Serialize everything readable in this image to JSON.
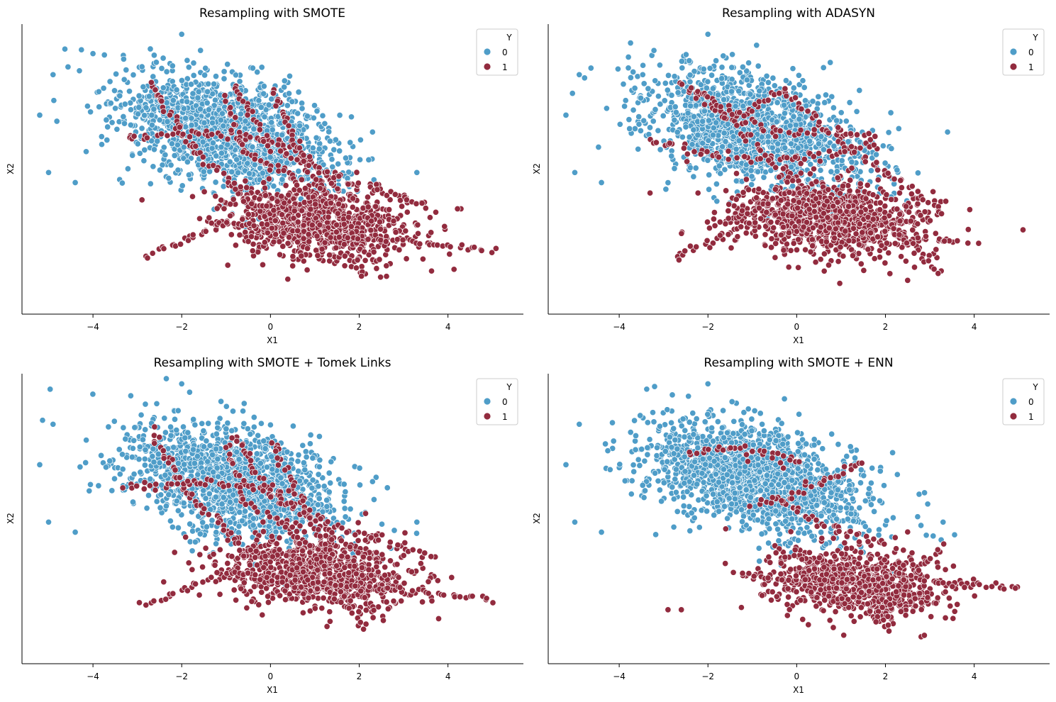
{
  "colors": {
    "class0": "#4f9dc8",
    "class1": "#922b3e",
    "edge": "#ffffff",
    "axis": "#000000"
  },
  "chart_data": [
    {
      "type": "scatter",
      "title": "Resampling with SMOTE",
      "xlabel": "X1",
      "ylabel": "X2",
      "xlim": [
        -5.6,
        5.7
      ],
      "ylim": [
        -4.4,
        4.2
      ],
      "xticks": [
        -4,
        -2,
        0,
        2,
        4
      ],
      "xtick_labels": [
        "−4",
        "−2",
        "0",
        "2",
        "4"
      ],
      "yticks_shown": false,
      "grid": false,
      "legend": {
        "title": "Y",
        "placement": "top-right",
        "entries": [
          "0",
          "1"
        ]
      },
      "series": [
        {
          "name": "0",
          "cluster": {
            "center": [
              -0.9,
              1.0
            ],
            "spread": [
              1.25,
              0.9
            ],
            "corr": -0.45,
            "n": 1500
          },
          "outliers": [
            [
              -5.2,
              1.5
            ],
            [
              -4.9,
              2.7
            ],
            [
              -5.0,
              -0.2
            ],
            [
              -4.4,
              -0.5
            ],
            [
              -2.0,
              3.9
            ],
            [
              1.1,
              0.5
            ],
            [
              3.3,
              -0.2
            ],
            [
              2.3,
              1.0
            ]
          ]
        },
        {
          "name": "1",
          "cluster": {
            "center": [
              1.0,
              -1.7
            ],
            "spread": [
              1.05,
              0.55
            ],
            "corr": -0.2,
            "n": 800
          },
          "paths": [
            [
              [
                -2.7,
                2.5
              ],
              [
                -1.8,
                0.5
              ],
              [
                -0.5,
                -1.0
              ],
              [
                0.9,
                -1.8
              ]
            ],
            [
              [
                -3.3,
                0.8
              ],
              [
                -1.5,
                1.0
              ],
              [
                0.0,
                0.8
              ],
              [
                2.2,
                -1.3
              ]
            ],
            [
              [
                -1.0,
                2.0
              ],
              [
                -0.6,
                0.4
              ],
              [
                0.5,
                -0.3
              ],
              [
                2.1,
                -3.3
              ]
            ],
            [
              [
                -2.8,
                -2.7
              ],
              [
                -1.0,
                -1.7
              ],
              [
                1.0,
                -2.0
              ],
              [
                5.0,
                -2.5
              ]
            ],
            [
              [
                -0.8,
                2.4
              ],
              [
                0.0,
                0.6
              ],
              [
                1.8,
                -0.5
              ],
              [
                3.6,
                -1.2
              ]
            ],
            [
              [
                0.1,
                2.2
              ],
              [
                0.5,
                0.8
              ],
              [
                1.3,
                -1.0
              ],
              [
                2.5,
                -3.1
              ]
            ]
          ]
        }
      ]
    },
    {
      "type": "scatter",
      "title": "Resampling with ADASYN",
      "xlabel": "X1",
      "ylabel": "X2",
      "xlim": [
        -5.6,
        5.7
      ],
      "ylim": [
        -4.4,
        4.2
      ],
      "xticks": [
        -4,
        -2,
        0,
        2,
        4
      ],
      "xtick_labels": [
        "−4",
        "−2",
        "0",
        "2",
        "4"
      ],
      "yticks_shown": false,
      "grid": false,
      "legend": {
        "title": "Y",
        "placement": "top-right",
        "entries": [
          "0",
          "1"
        ]
      },
      "series": [
        {
          "name": "0",
          "cluster": {
            "center": [
              -0.9,
              1.0
            ],
            "spread": [
              1.25,
              0.9
            ],
            "corr": -0.45,
            "n": 1450
          },
          "outliers": [
            [
              -5.2,
              1.5
            ],
            [
              -4.9,
              2.7
            ],
            [
              -5.0,
              -0.2
            ],
            [
              -4.4,
              -0.5
            ],
            [
              -2.0,
              3.9
            ],
            [
              1.0,
              0.5
            ],
            [
              3.4,
              1.0
            ],
            [
              2.3,
              1.1
            ]
          ]
        },
        {
          "name": "1",
          "cluster": {
            "center": [
              0.7,
              -1.6
            ],
            "spread": [
              1.15,
              0.6
            ],
            "corr": -0.15,
            "n": 850
          },
          "paths": [
            [
              [
                -2.7,
                2.5
              ],
              [
                -1.6,
                1.5
              ],
              [
                0.0,
                -0.5
              ],
              [
                1.8,
                -2.0
              ]
            ],
            [
              [
                -3.3,
                0.8
              ],
              [
                -1.8,
                0.3
              ],
              [
                0.0,
                0.2
              ],
              [
                1.8,
                0.6
              ]
            ],
            [
              [
                -2.7,
                -2.7
              ],
              [
                -1.0,
                -1.7
              ],
              [
                1.5,
                -2.0
              ],
              [
                3.5,
                -2.2
              ]
            ],
            [
              [
                -1.3,
                1.5
              ],
              [
                -0.3,
                2.2
              ],
              [
                1.2,
                0.5
              ],
              [
                3.3,
                -1.4
              ]
            ],
            [
              [
                -2.3,
                2.2
              ],
              [
                -0.5,
                1.0
              ],
              [
                1.0,
                1.0
              ],
              [
                1.8,
                0.8
              ]
            ],
            [
              [
                -1.8,
                -1.8
              ],
              [
                0.0,
                -0.7
              ],
              [
                2.2,
                -1.8
              ],
              [
                3.2,
                -3.2
              ]
            ]
          ],
          "outliers": [
            [
              5.1,
              -1.9
            ],
            [
              4.1,
              -2.3
            ],
            [
              3.9,
              -1.3
            ],
            [
              2.5,
              -3.4
            ],
            [
              2.1,
              -3.2
            ]
          ]
        }
      ]
    },
    {
      "type": "scatter",
      "title": "Resampling with SMOTE + Tomek Links",
      "xlabel": "X1",
      "ylabel": "X2",
      "xlim": [
        -5.6,
        5.7
      ],
      "ylim": [
        -4.4,
        4.2
      ],
      "xticks": [
        -4,
        -2,
        0,
        2,
        4
      ],
      "xtick_labels": [
        "−4",
        "−2",
        "0",
        "2",
        "4"
      ],
      "yticks_shown": false,
      "grid": false,
      "legend": {
        "title": "Y",
        "placement": "top-right",
        "entries": [
          "0",
          "1"
        ]
      },
      "series": [
        {
          "name": "0",
          "cluster": {
            "center": [
              -0.9,
              1.0
            ],
            "spread": [
              1.25,
              0.9
            ],
            "corr": -0.45,
            "n": 1500
          },
          "outliers": [
            [
              -5.2,
              1.5
            ],
            [
              -4.9,
              2.7
            ],
            [
              -5.0,
              -0.2
            ],
            [
              -4.4,
              -0.5
            ],
            [
              -2.0,
              3.9
            ],
            [
              1.1,
              0.5
            ],
            [
              3.3,
              -0.2
            ],
            [
              2.3,
              1.0
            ]
          ]
        },
        {
          "name": "1",
          "cluster": {
            "center": [
              1.0,
              -1.7
            ],
            "spread": [
              1.05,
              0.55
            ],
            "corr": -0.2,
            "n": 780
          },
          "paths": [
            [
              [
                -2.7,
                2.5
              ],
              [
                -1.8,
                0.5
              ],
              [
                -0.5,
                -1.0
              ],
              [
                0.9,
                -1.8
              ]
            ],
            [
              [
                -3.3,
                0.8
              ],
              [
                -1.5,
                1.0
              ],
              [
                0.0,
                0.8
              ],
              [
                2.2,
                -1.3
              ]
            ],
            [
              [
                -1.0,
                2.0
              ],
              [
                -0.6,
                0.4
              ],
              [
                0.5,
                -0.3
              ],
              [
                2.1,
                -3.3
              ]
            ],
            [
              [
                -2.8,
                -2.7
              ],
              [
                -1.0,
                -1.7
              ],
              [
                1.0,
                -2.0
              ],
              [
                5.0,
                -2.5
              ]
            ],
            [
              [
                -0.8,
                2.4
              ],
              [
                0.0,
                0.6
              ],
              [
                1.8,
                -0.5
              ],
              [
                3.6,
                -1.2
              ]
            ],
            [
              [
                0.1,
                2.2
              ],
              [
                0.5,
                0.8
              ],
              [
                1.3,
                -1.0
              ],
              [
                2.5,
                -3.1
              ]
            ]
          ]
        }
      ]
    },
    {
      "type": "scatter",
      "title": "Resampling with SMOTE + ENN",
      "xlabel": "X1",
      "ylabel": "X2",
      "xlim": [
        -5.6,
        5.7
      ],
      "ylim": [
        -4.4,
        4.2
      ],
      "xticks": [
        -4,
        -2,
        0,
        2,
        4
      ],
      "xtick_labels": [
        "−4",
        "−2",
        "0",
        "2",
        "4"
      ],
      "yticks_shown": false,
      "grid": false,
      "legend": {
        "title": "Y",
        "placement": "top-right",
        "entries": [
          "0",
          "1"
        ]
      },
      "series": [
        {
          "name": "0",
          "cluster": {
            "center": [
              -0.9,
              1.1
            ],
            "spread": [
              1.25,
              0.85
            ],
            "corr": -0.45,
            "n": 1700
          },
          "outliers": [
            [
              -5.2,
              1.5
            ],
            [
              -4.9,
              2.7
            ],
            [
              -5.0,
              -0.2
            ],
            [
              -4.4,
              -0.5
            ],
            [
              -2.0,
              3.9
            ],
            [
              1.7,
              1.4
            ],
            [
              3.3,
              -0.2
            ],
            [
              2.8,
              -0.3
            ]
          ]
        },
        {
          "name": "1",
          "cluster": {
            "center": [
              1.3,
              -2.0
            ],
            "spread": [
              1.0,
              0.5
            ],
            "corr": -0.25,
            "n": 820
          },
          "paths": [
            [
              [
                -1.4,
                -1.7
              ],
              [
                0.0,
                -1.9
              ],
              [
                2.5,
                -1.9
              ],
              [
                5.0,
                -2.2
              ]
            ],
            [
              [
                2.0,
                -3.3
              ],
              [
                2.2,
                -2.3
              ],
              [
                3.3,
                -0.9
              ]
            ],
            [
              [
                -0.5,
                0.5
              ],
              [
                0.5,
                -0.2
              ],
              [
                2.0,
                -0.8
              ]
            ],
            [
              [
                -2.4,
                1.8
              ],
              [
                -1.4,
                2.0
              ],
              [
                0.1,
                1.6
              ]
            ],
            [
              [
                -1.0,
                0.3
              ],
              [
                -0.1,
                0.6
              ],
              [
                1.5,
                1.6
              ]
            ]
          ],
          "outliers": [
            [
              -2.6,
              -2.8
            ],
            [
              -2.9,
              -2.8
            ],
            [
              -1.1,
              1.6
            ],
            [
              -0.3,
              1.4
            ],
            [
              0.2,
              1.0
            ],
            [
              -1.6,
              -0.4
            ]
          ]
        }
      ]
    }
  ]
}
